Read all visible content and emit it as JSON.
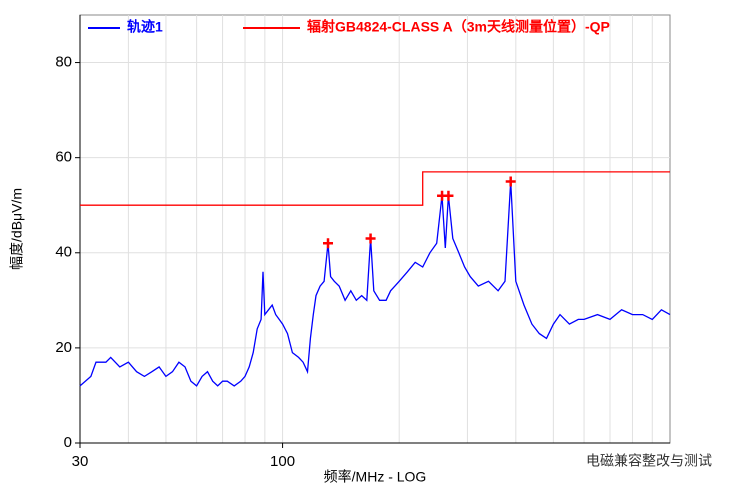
{
  "chart_data": {
    "type": "line",
    "x_label": "频率/MHz - LOG",
    "y_label": "幅度/dBμV/m",
    "watermark": "电磁兼容整改与测试",
    "x_log": true,
    "xlim": [
      30,
      1000
    ],
    "ylim": [
      0,
      90
    ],
    "xticks": [
      30,
      100
    ],
    "yticks": [
      0,
      20,
      40,
      60,
      80
    ],
    "x_grid": [
      40,
      50,
      60,
      70,
      80,
      90,
      100,
      200,
      300,
      400,
      500,
      600,
      700,
      800,
      900
    ],
    "grid": true,
    "series": [
      {
        "name": "轨迹1",
        "color": "#0000ff",
        "x": [
          30,
          32,
          33,
          35,
          36,
          38,
          40,
          42,
          44,
          46,
          48,
          50,
          52,
          54,
          56,
          58,
          60,
          62,
          64,
          66,
          68,
          70,
          72,
          75,
          78,
          80,
          82,
          84,
          86,
          88,
          89,
          90,
          92,
          94,
          96,
          98,
          100,
          103,
          106,
          110,
          113,
          116,
          118,
          120,
          122,
          125,
          128,
          131,
          133,
          136,
          140,
          145,
          150,
          155,
          160,
          165,
          168.7,
          172,
          178,
          185,
          190,
          195,
          200,
          210,
          220,
          230,
          240,
          250,
          258,
          263,
          268,
          275,
          285,
          295,
          305,
          320,
          340,
          360,
          375,
          388,
          400,
          420,
          440,
          460,
          480,
          500,
          520,
          550,
          580,
          600,
          650,
          700,
          750,
          800,
          850,
          900,
          950,
          1000
        ],
        "values": [
          12,
          14,
          17,
          17,
          18,
          16,
          17,
          15,
          14,
          15,
          16,
          14,
          15,
          17,
          16,
          13,
          12,
          14,
          15,
          13,
          12,
          13,
          13,
          12,
          13,
          14,
          16,
          19,
          24,
          26,
          36,
          27,
          28,
          29,
          27,
          26,
          25,
          23,
          19,
          18,
          17,
          15,
          22,
          27,
          31,
          33,
          34,
          42,
          35,
          34,
          33,
          30,
          32,
          30,
          31,
          30,
          43,
          32,
          30,
          30,
          32,
          33,
          34,
          36,
          38,
          37,
          40,
          42,
          52,
          41,
          52,
          43,
          40,
          37,
          35,
          33,
          34,
          32,
          34,
          55,
          34,
          29,
          25,
          23,
          22,
          25,
          27,
          25,
          26,
          26,
          27,
          26,
          28,
          27,
          27,
          26,
          28,
          27
        ]
      },
      {
        "name": "辐射GB4824-CLASS A（3m天线测量位置）-QP",
        "color": "#ff0000",
        "x": [
          30,
          230,
          230,
          1000
        ],
        "values": [
          50,
          50,
          57,
          57
        ]
      }
    ],
    "markers": {
      "x": [
        131,
        168.7,
        258,
        268,
        388
      ],
      "values": [
        42,
        43,
        52,
        52,
        55
      ],
      "color": "#ff0000"
    }
  }
}
